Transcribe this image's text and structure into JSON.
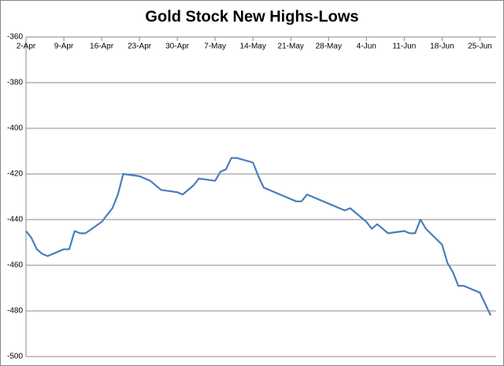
{
  "chart_data": {
    "type": "line",
    "title": "Gold Stock New Highs-Lows",
    "x": [
      "2-Apr",
      "3-Apr",
      "4-Apr",
      "5-Apr",
      "6-Apr",
      "9-Apr",
      "10-Apr",
      "11-Apr",
      "12-Apr",
      "13-Apr",
      "16-Apr",
      "18-Apr",
      "19-Apr",
      "20-Apr",
      "23-Apr",
      "25-Apr",
      "27-Apr",
      "30-Apr",
      "1-May",
      "3-May",
      "4-May",
      "7-May",
      "8-May",
      "9-May",
      "10-May",
      "11-May",
      "14-May",
      "15-May",
      "16-May",
      "22-May",
      "23-May",
      "24-May",
      "28-May",
      "30-May",
      "31-May",
      "1-Jun",
      "4-Jun",
      "5-Jun",
      "6-Jun",
      "8-Jun",
      "11-Jun",
      "12-Jun",
      "13-Jun",
      "14-Jun",
      "15-Jun",
      "18-Jun",
      "19-Jun",
      "20-Jun",
      "21-Jun",
      "22-Jun",
      "25-Jun",
      "27-Jun"
    ],
    "series": [
      {
        "color": "#4a7ebb",
        "values": [
          -445,
          -448,
          -453,
          -455,
          -456,
          -453,
          -453,
          -445,
          -446,
          -446,
          -441,
          -435,
          -429,
          -420,
          -421,
          -423,
          -427,
          -428,
          -429,
          -425,
          -422,
          -423,
          -419,
          -418,
          -413,
          -413,
          -415,
          -421,
          -426,
          -432,
          -432,
          -429,
          -433,
          -435,
          -436,
          -435,
          -441,
          -444,
          -442,
          -446,
          -445,
          -446,
          -446,
          -440,
          -444,
          -451,
          -459,
          -463,
          -469,
          -469,
          -472,
          -482
        ]
      }
    ],
    "xlim": [
      "2-Apr",
      "28-Jun"
    ],
    "xticks": [
      "2-Apr",
      "9-Apr",
      "16-Apr",
      "23-Apr",
      "30-Apr",
      "7-May",
      "14-May",
      "21-May",
      "28-May",
      "4-Jun",
      "11-Jun",
      "18-Jun",
      "25-Jun"
    ],
    "ylim": [
      -500,
      -360
    ],
    "yticks": [
      -500,
      -480,
      -460,
      -440,
      -420,
      -400,
      -380,
      -360
    ],
    "grid": true
  }
}
